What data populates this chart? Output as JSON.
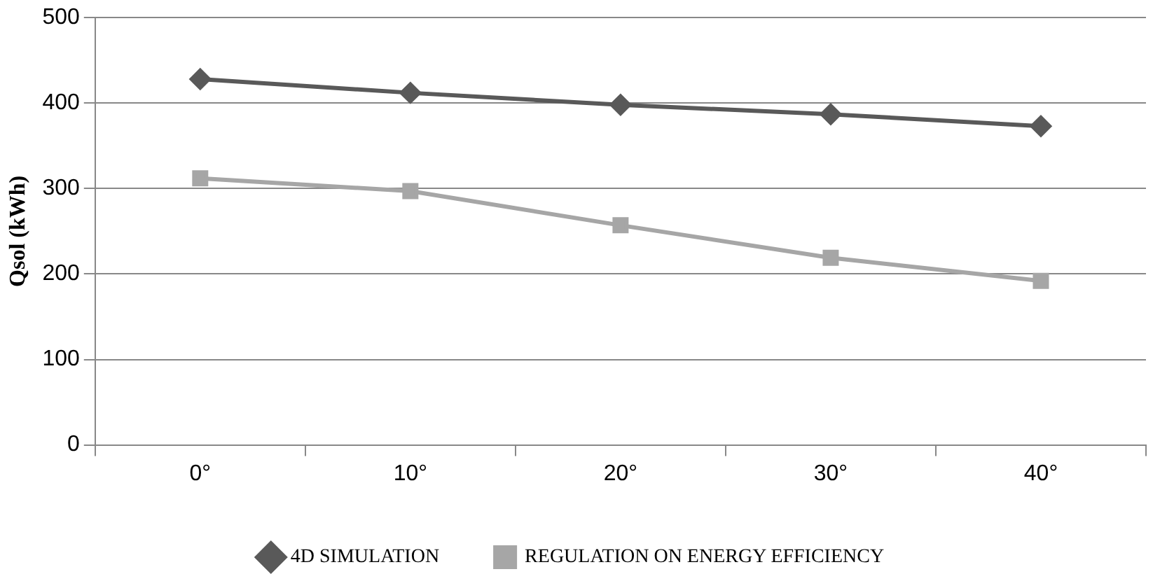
{
  "chart_data": {
    "type": "line",
    "ylabel": "Qsol (kWh)",
    "categories": [
      "0°",
      "10°",
      "20°",
      "30°",
      "40°"
    ],
    "series": [
      {
        "name": "4D SIMULATION",
        "color": "#595959",
        "marker": "diamond",
        "values": [
          428,
          412,
          398,
          387,
          373
        ]
      },
      {
        "name": "REGULATION ON ENERGY EFFICIENCY",
        "color": "#a6a6a6",
        "marker": "square",
        "values": [
          312,
          297,
          257,
          219,
          192
        ]
      }
    ],
    "ylim": [
      0,
      500
    ],
    "yticks": [
      0,
      100,
      200,
      300,
      400,
      500
    ],
    "grid": "y",
    "legend": "bottom",
    "line_style": "solid"
  }
}
